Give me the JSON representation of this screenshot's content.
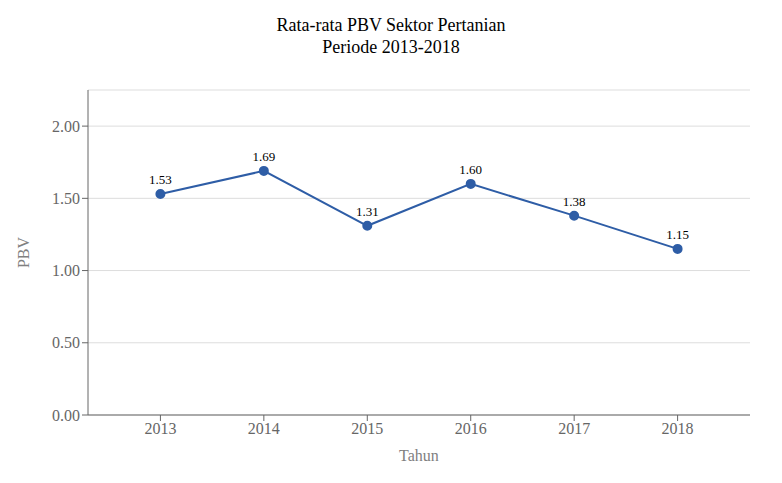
{
  "chart_data": {
    "type": "line",
    "title": "Rata-rata PBV Sektor Pertanian\nPeriode 2013-2018",
    "x_label": "Tahun",
    "y_label": "PBV",
    "x": [
      2013,
      2014,
      2015,
      2016,
      2017,
      2018
    ],
    "values": [
      1.53,
      1.69,
      1.31,
      1.6,
      1.38,
      1.15
    ],
    "value_labels": [
      "1.53",
      "1.69",
      "1.31",
      "1.60",
      "1.38",
      "1.15"
    ],
    "data_labels": true,
    "color": "#2E5DA6",
    "marker": "circle",
    "line_style": "solid",
    "xlim": [
      2012.3,
      2018.7
    ],
    "xticks": [
      2013,
      2014,
      2015,
      2016,
      2017,
      2018
    ],
    "ylim": [
      0.0,
      2.25
    ],
    "yticks": [
      {
        "value": 0.0,
        "label": "0.00"
      },
      {
        "value": 0.5,
        "label": "0.50"
      },
      {
        "value": 1.0,
        "label": "1.00"
      },
      {
        "value": 1.5,
        "label": "1.50"
      },
      {
        "value": 2.0,
        "label": "2.00"
      }
    ],
    "grid": "y"
  }
}
